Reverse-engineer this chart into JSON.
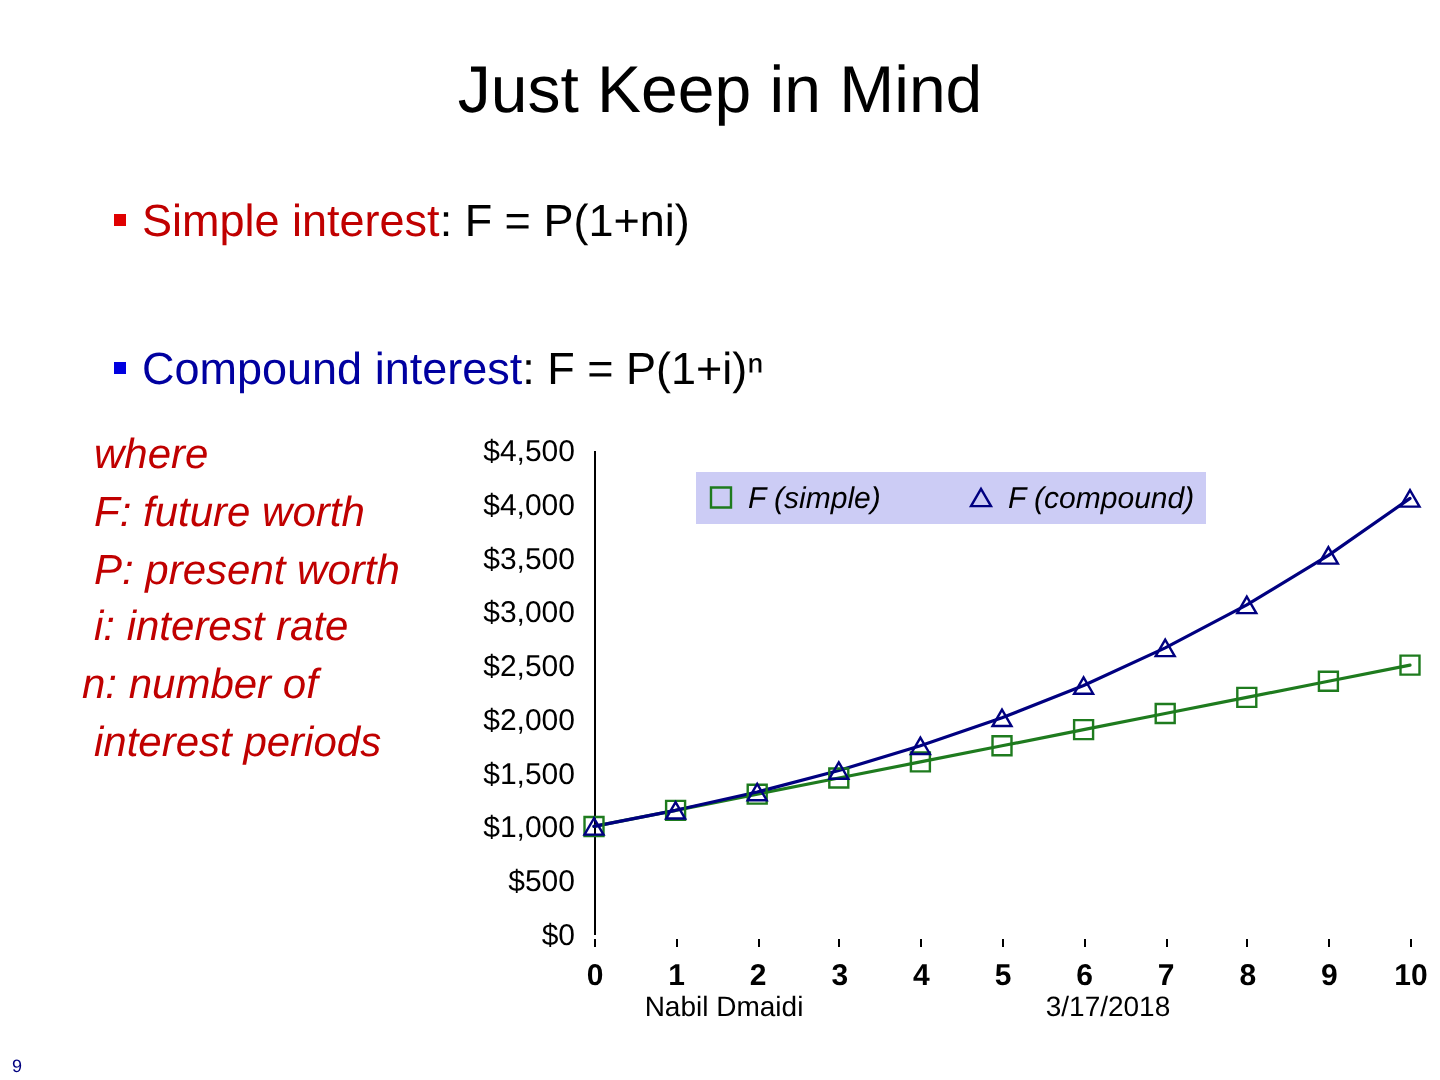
{
  "chart_data": {
    "type": "line",
    "title": "Just Keep in Mind",
    "annotations": [
      "Simple interest: F = P(1+ni)",
      "Compound interest: F = P(1+i)ⁿ",
      "where",
      "F: future worth",
      "P: present worth",
      "i: interest rate",
      "n: number of",
      "interest periods",
      "Nabil Dmaidi",
      "3/17/2018",
      "9"
    ],
    "x": [
      0,
      1,
      2,
      3,
      4,
      5,
      6,
      7,
      8,
      9,
      10
    ],
    "series": [
      {
        "name": "F (simple)",
        "color": "#1e7b1e",
        "marker": "square",
        "values": [
          1000,
          1150,
          1300,
          1450,
          1600,
          1750,
          1900,
          2050,
          2200,
          2350,
          2500
        ]
      },
      {
        "name": "F (compound)",
        "color": "#000080",
        "marker": "triangle",
        "values": [
          1000,
          1150,
          1320,
          1520,
          1750,
          2010,
          2310,
          2660,
          3060,
          3520,
          4050
        ]
      }
    ],
    "xlim": [
      0,
      10
    ],
    "xticks": [
      0,
      1,
      2,
      3,
      4,
      5,
      6,
      7,
      8,
      9,
      10
    ],
    "ylim": [
      0,
      4500
    ],
    "yticks": [
      {
        "value": 0,
        "label": "$0"
      },
      {
        "value": 500,
        "label": "$500"
      },
      {
        "value": 1000,
        "label": "$1,000"
      },
      {
        "value": 1500,
        "label": "$1,500"
      },
      {
        "value": 2000,
        "label": "$2,000"
      },
      {
        "value": 2500,
        "label": "$2,500"
      },
      {
        "value": 3000,
        "label": "$3,000"
      },
      {
        "value": 3500,
        "label": "$3,500"
      },
      {
        "value": 4000,
        "label": "$4,000"
      },
      {
        "value": 4500,
        "label": "$4,500"
      }
    ],
    "legend": "top",
    "line_style": "solid"
  }
}
